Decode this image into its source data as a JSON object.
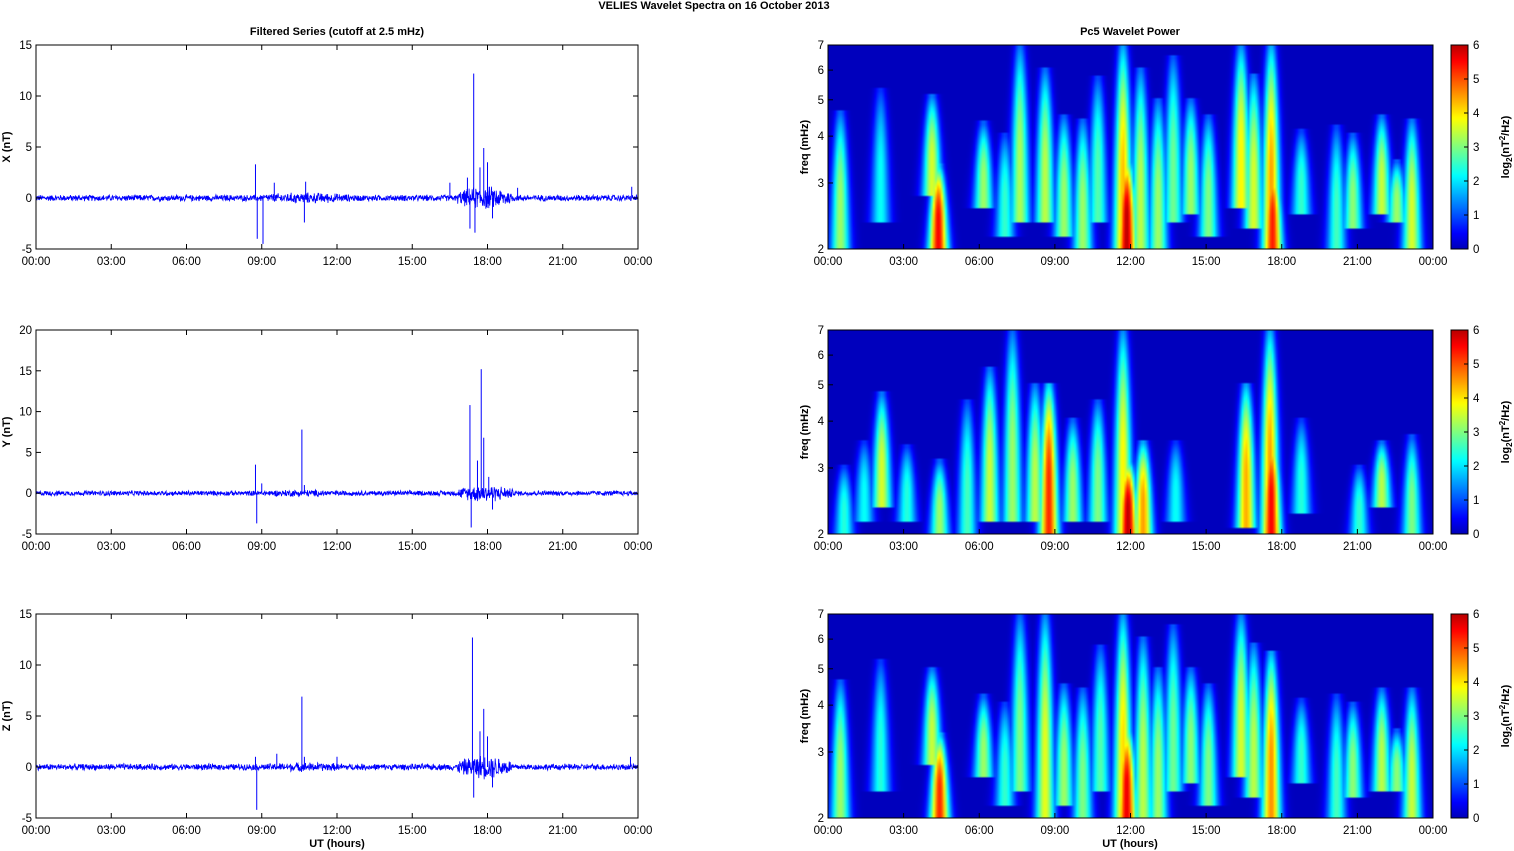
{
  "figure": {
    "title": "VELIES Wavelet Spectra on 16 October   2013",
    "left_title": "Filtered Series (cutoff at 2.5 mHz)",
    "right_title": "Pc5 Wavelet Power",
    "xlabel": "UT (hours)"
  },
  "time_ticks": [
    "00:00",
    "03:00",
    "06:00",
    "09:00",
    "12:00",
    "15:00",
    "18:00",
    "21:00",
    "00:00"
  ],
  "colors": {
    "series": "#0000ff",
    "axes": "#000000",
    "background": "#00008f"
  },
  "chart_data": [
    {
      "type": "line",
      "name": "x-series",
      "ylabel": "X (nT)",
      "ylim": [
        -5,
        15
      ],
      "yticks": [
        -5,
        0,
        5,
        10,
        15
      ],
      "xlim": [
        0,
        24
      ],
      "x_unit": "hours UT",
      "noise_amplitude": 0.35,
      "spikes": [
        {
          "t": 8.75,
          "y": 3.3
        },
        {
          "t": 8.82,
          "y": -4.0
        },
        {
          "t": 9.05,
          "y": -4.5
        },
        {
          "t": 9.5,
          "y": 1.5
        },
        {
          "t": 10.7,
          "y": -2.4
        },
        {
          "t": 10.75,
          "y": 1.6
        },
        {
          "t": 16.5,
          "y": 1.5
        },
        {
          "t": 17.2,
          "y": 2.0
        },
        {
          "t": 17.3,
          "y": -3.0
        },
        {
          "t": 17.45,
          "y": 12.2
        },
        {
          "t": 17.5,
          "y": -3.4
        },
        {
          "t": 17.7,
          "y": 3.0
        },
        {
          "t": 17.85,
          "y": 4.9
        },
        {
          "t": 18.0,
          "y": 3.5
        },
        {
          "t": 18.2,
          "y": -2.0
        },
        {
          "t": 19.2,
          "y": 1.0
        },
        {
          "t": 23.75,
          "y": 1.1
        }
      ],
      "bursts": [
        {
          "t0": 16.8,
          "t1": 19.0,
          "amp": 1.3
        },
        {
          "t0": 8.5,
          "t1": 13.0,
          "amp": 0.6
        }
      ]
    },
    {
      "type": "line",
      "name": "y-series",
      "ylabel": "Y (nT)",
      "ylim": [
        -5,
        20
      ],
      "yticks": [
        -5,
        0,
        5,
        10,
        15,
        20
      ],
      "xlim": [
        0,
        24
      ],
      "x_unit": "hours UT",
      "noise_amplitude": 0.35,
      "spikes": [
        {
          "t": 8.75,
          "y": 3.5
        },
        {
          "t": 8.8,
          "y": -3.7
        },
        {
          "t": 9.0,
          "y": 1.2
        },
        {
          "t": 10.6,
          "y": 7.8
        },
        {
          "t": 10.7,
          "y": 1.0
        },
        {
          "t": 17.3,
          "y": 10.8
        },
        {
          "t": 17.35,
          "y": -4.2
        },
        {
          "t": 17.6,
          "y": 4.0
        },
        {
          "t": 17.75,
          "y": 15.2
        },
        {
          "t": 17.85,
          "y": 6.8
        },
        {
          "t": 18.05,
          "y": 2.0
        },
        {
          "t": 18.2,
          "y": -2.0
        }
      ],
      "bursts": [
        {
          "t0": 16.8,
          "t1": 19.0,
          "amp": 1.2
        },
        {
          "t0": 8.5,
          "t1": 12.5,
          "amp": 0.5
        }
      ]
    },
    {
      "type": "line",
      "name": "z-series",
      "ylabel": "Z (nT)",
      "ylim": [
        -5,
        15
      ],
      "yticks": [
        -5,
        0,
        5,
        10,
        15
      ],
      "xlim": [
        0,
        24
      ],
      "x_unit": "hours UT",
      "noise_amplitude": 0.35,
      "spikes": [
        {
          "t": 8.75,
          "y": 1.0
        },
        {
          "t": 8.8,
          "y": -4.2
        },
        {
          "t": 9.6,
          "y": 1.3
        },
        {
          "t": 10.6,
          "y": 6.9
        },
        {
          "t": 10.7,
          "y": 1.0
        },
        {
          "t": 12.0,
          "y": 1.0
        },
        {
          "t": 17.4,
          "y": 12.7
        },
        {
          "t": 17.45,
          "y": -3.0
        },
        {
          "t": 17.7,
          "y": 3.5
        },
        {
          "t": 17.85,
          "y": 5.7
        },
        {
          "t": 18.0,
          "y": 3.0
        },
        {
          "t": 18.2,
          "y": -2.0
        },
        {
          "t": 23.7,
          "y": 1.0
        }
      ],
      "bursts": [
        {
          "t0": 16.8,
          "t1": 19.0,
          "amp": 1.3
        },
        {
          "t0": 8.5,
          "t1": 13.0,
          "amp": 0.5
        }
      ]
    },
    {
      "type": "heatmap",
      "name": "x-wavelet",
      "ylabel": "freq (mHz)",
      "ylim": [
        2,
        7
      ],
      "yscale": "log",
      "yticks": [
        2,
        3,
        4,
        5,
        6,
        7
      ],
      "xlim": [
        0,
        24
      ],
      "colorbar": {
        "label": "log2(nT2/Hz)",
        "range": [
          0,
          6
        ],
        "ticks": [
          0,
          1,
          2,
          3,
          4,
          5,
          6
        ]
      },
      "blobs": [
        {
          "t": 0.45,
          "f0": 2.0,
          "f1": 4.6,
          "p": 3.2
        },
        {
          "t": 2.05,
          "f0": 2.4,
          "f1": 5.3,
          "p": 2.2
        },
        {
          "t": 4.1,
          "f0": 2.8,
          "f1": 5.1,
          "p": 3.6
        },
        {
          "t": 4.35,
          "f0": 2.0,
          "f1": 3.3,
          "p": 5.6
        },
        {
          "t": 6.15,
          "f0": 2.6,
          "f1": 4.3,
          "p": 3.2
        },
        {
          "t": 7.0,
          "f0": 2.2,
          "f1": 4.0,
          "p": 2.5
        },
        {
          "t": 7.6,
          "f0": 2.4,
          "f1": 7.0,
          "p": 3.3
        },
        {
          "t": 8.6,
          "f0": 2.4,
          "f1": 6.0,
          "p": 3.4
        },
        {
          "t": 9.35,
          "f0": 2.2,
          "f1": 4.5,
          "p": 3.2
        },
        {
          "t": 10.1,
          "f0": 2.0,
          "f1": 4.4,
          "p": 3.2
        },
        {
          "t": 10.7,
          "f0": 2.4,
          "f1": 5.7,
          "p": 2.7
        },
        {
          "t": 11.7,
          "f0": 2.0,
          "f1": 7.0,
          "p": 4.3
        },
        {
          "t": 11.85,
          "f0": 2.0,
          "f1": 3.5,
          "p": 6.0
        },
        {
          "t": 12.4,
          "f0": 2.0,
          "f1": 6.0,
          "p": 3.4
        },
        {
          "t": 13.1,
          "f0": 2.0,
          "f1": 5.0,
          "p": 3.2
        },
        {
          "t": 13.7,
          "f0": 2.4,
          "f1": 6.5,
          "p": 2.9
        },
        {
          "t": 14.4,
          "f0": 2.5,
          "f1": 5.0,
          "p": 3.2
        },
        {
          "t": 15.1,
          "f0": 2.2,
          "f1": 4.5,
          "p": 3.0
        },
        {
          "t": 16.4,
          "f0": 2.6,
          "f1": 7.0,
          "p": 3.9
        },
        {
          "t": 16.9,
          "f0": 2.3,
          "f1": 5.8,
          "p": 3.6
        },
        {
          "t": 17.6,
          "f0": 2.0,
          "f1": 7.0,
          "p": 4.5
        },
        {
          "t": 17.65,
          "f0": 2.0,
          "f1": 3.4,
          "p": 5.4
        },
        {
          "t": 18.8,
          "f0": 2.5,
          "f1": 4.1,
          "p": 2.5
        },
        {
          "t": 20.2,
          "f0": 2.0,
          "f1": 4.2,
          "p": 2.6
        },
        {
          "t": 20.85,
          "f0": 2.3,
          "f1": 4.0,
          "p": 3.1
        },
        {
          "t": 22.0,
          "f0": 2.5,
          "f1": 4.5,
          "p": 3.5
        },
        {
          "t": 22.6,
          "f0": 2.4,
          "f1": 3.4,
          "p": 3.2
        },
        {
          "t": 23.2,
          "f0": 2.0,
          "f1": 4.4,
          "p": 3.6
        }
      ]
    },
    {
      "type": "heatmap",
      "name": "y-wavelet",
      "ylabel": "freq (mHz)",
      "ylim": [
        2,
        7
      ],
      "yscale": "log",
      "yticks": [
        2,
        3,
        4,
        5,
        6,
        7
      ],
      "xlim": [
        0,
        24
      ],
      "colorbar": {
        "label": "log2(nT2/Hz)",
        "range": [
          0,
          6
        ],
        "ticks": [
          0,
          1,
          2,
          3,
          4,
          5,
          6
        ]
      },
      "blobs": [
        {
          "t": 0.6,
          "f0": 2.0,
          "f1": 3.0,
          "p": 2.4
        },
        {
          "t": 1.4,
          "f0": 2.2,
          "f1": 3.5,
          "p": 2.2
        },
        {
          "t": 2.1,
          "f0": 2.4,
          "f1": 4.7,
          "p": 3.6
        },
        {
          "t": 3.1,
          "f0": 2.2,
          "f1": 3.4,
          "p": 2.4
        },
        {
          "t": 4.4,
          "f0": 2.0,
          "f1": 3.1,
          "p": 3.2
        },
        {
          "t": 5.5,
          "f0": 2.0,
          "f1": 4.5,
          "p": 2.6
        },
        {
          "t": 6.4,
          "f0": 2.2,
          "f1": 5.5,
          "p": 3.5
        },
        {
          "t": 7.3,
          "f0": 2.2,
          "f1": 7.0,
          "p": 3.2
        },
        {
          "t": 8.2,
          "f0": 2.2,
          "f1": 5.0,
          "p": 3.4
        },
        {
          "t": 8.75,
          "f0": 2.0,
          "f1": 5.0,
          "p": 5.3
        },
        {
          "t": 9.7,
          "f0": 2.2,
          "f1": 4.0,
          "p": 3.2
        },
        {
          "t": 10.7,
          "f0": 2.2,
          "f1": 4.5,
          "p": 3.0
        },
        {
          "t": 11.7,
          "f0": 2.0,
          "f1": 7.0,
          "p": 3.9
        },
        {
          "t": 11.9,
          "f0": 2.0,
          "f1": 3.1,
          "p": 6.0
        },
        {
          "t": 12.5,
          "f0": 2.0,
          "f1": 3.5,
          "p": 4.5
        },
        {
          "t": 13.8,
          "f0": 2.2,
          "f1": 3.5,
          "p": 2.2
        },
        {
          "t": 16.6,
          "f0": 2.1,
          "f1": 5.0,
          "p": 4.4
        },
        {
          "t": 17.55,
          "f0": 2.0,
          "f1": 7.0,
          "p": 4.5
        },
        {
          "t": 17.6,
          "f0": 2.0,
          "f1": 3.8,
          "p": 5.6
        },
        {
          "t": 18.8,
          "f0": 2.3,
          "f1": 4.0,
          "p": 2.4
        },
        {
          "t": 21.1,
          "f0": 2.0,
          "f1": 3.0,
          "p": 2.5
        },
        {
          "t": 22.0,
          "f0": 2.4,
          "f1": 3.5,
          "p": 3.4
        },
        {
          "t": 23.2,
          "f0": 2.0,
          "f1": 3.6,
          "p": 3.0
        }
      ]
    },
    {
      "type": "heatmap",
      "name": "z-wavelet",
      "ylabel": "freq (mHz)",
      "ylim": [
        2,
        7
      ],
      "yscale": "log",
      "yticks": [
        2,
        3,
        4,
        5,
        6,
        7
      ],
      "xlim": [
        0,
        24
      ],
      "colorbar": {
        "label": "log2(nT2/Hz)",
        "range": [
          0,
          6
        ],
        "ticks": [
          0,
          1,
          2,
          3,
          4,
          5,
          6
        ]
      },
      "blobs": [
        {
          "t": 0.45,
          "f0": 2.0,
          "f1": 4.6,
          "p": 3.2
        },
        {
          "t": 2.05,
          "f0": 2.4,
          "f1": 5.2,
          "p": 2.4
        },
        {
          "t": 4.1,
          "f0": 2.8,
          "f1": 5.0,
          "p": 3.5
        },
        {
          "t": 4.4,
          "f0": 2.0,
          "f1": 3.3,
          "p": 5.3
        },
        {
          "t": 6.15,
          "f0": 2.6,
          "f1": 4.2,
          "p": 3.2
        },
        {
          "t": 7.0,
          "f0": 2.2,
          "f1": 4.0,
          "p": 2.5
        },
        {
          "t": 7.6,
          "f0": 2.4,
          "f1": 7.0,
          "p": 3.0
        },
        {
          "t": 8.6,
          "f0": 2.0,
          "f1": 7.0,
          "p": 3.7
        },
        {
          "t": 9.35,
          "f0": 2.2,
          "f1": 4.5,
          "p": 3.2
        },
        {
          "t": 10.1,
          "f0": 2.0,
          "f1": 4.4,
          "p": 3.0
        },
        {
          "t": 10.8,
          "f0": 2.4,
          "f1": 5.7,
          "p": 2.7
        },
        {
          "t": 11.7,
          "f0": 2.0,
          "f1": 7.0,
          "p": 4.1
        },
        {
          "t": 11.85,
          "f0": 2.0,
          "f1": 3.5,
          "p": 5.7
        },
        {
          "t": 12.5,
          "f0": 2.0,
          "f1": 6.0,
          "p": 3.4
        },
        {
          "t": 13.1,
          "f0": 2.0,
          "f1": 5.0,
          "p": 3.2
        },
        {
          "t": 13.7,
          "f0": 2.4,
          "f1": 6.5,
          "p": 2.9
        },
        {
          "t": 14.4,
          "f0": 2.5,
          "f1": 5.0,
          "p": 3.1
        },
        {
          "t": 15.1,
          "f0": 2.2,
          "f1": 4.5,
          "p": 3.0
        },
        {
          "t": 16.4,
          "f0": 2.6,
          "f1": 7.0,
          "p": 3.6
        },
        {
          "t": 16.9,
          "f0": 2.3,
          "f1": 5.8,
          "p": 3.4
        },
        {
          "t": 17.6,
          "f0": 2.0,
          "f1": 5.5,
          "p": 4.6
        },
        {
          "t": 18.8,
          "f0": 2.5,
          "f1": 4.1,
          "p": 2.5
        },
        {
          "t": 20.2,
          "f0": 2.0,
          "f1": 4.2,
          "p": 2.6
        },
        {
          "t": 20.85,
          "f0": 2.3,
          "f1": 4.0,
          "p": 3.1
        },
        {
          "t": 22.0,
          "f0": 2.4,
          "f1": 4.4,
          "p": 3.4
        },
        {
          "t": 22.6,
          "f0": 2.4,
          "f1": 3.4,
          "p": 3.1
        },
        {
          "t": 23.2,
          "f0": 2.0,
          "f1": 4.4,
          "p": 3.5
        }
      ]
    }
  ]
}
